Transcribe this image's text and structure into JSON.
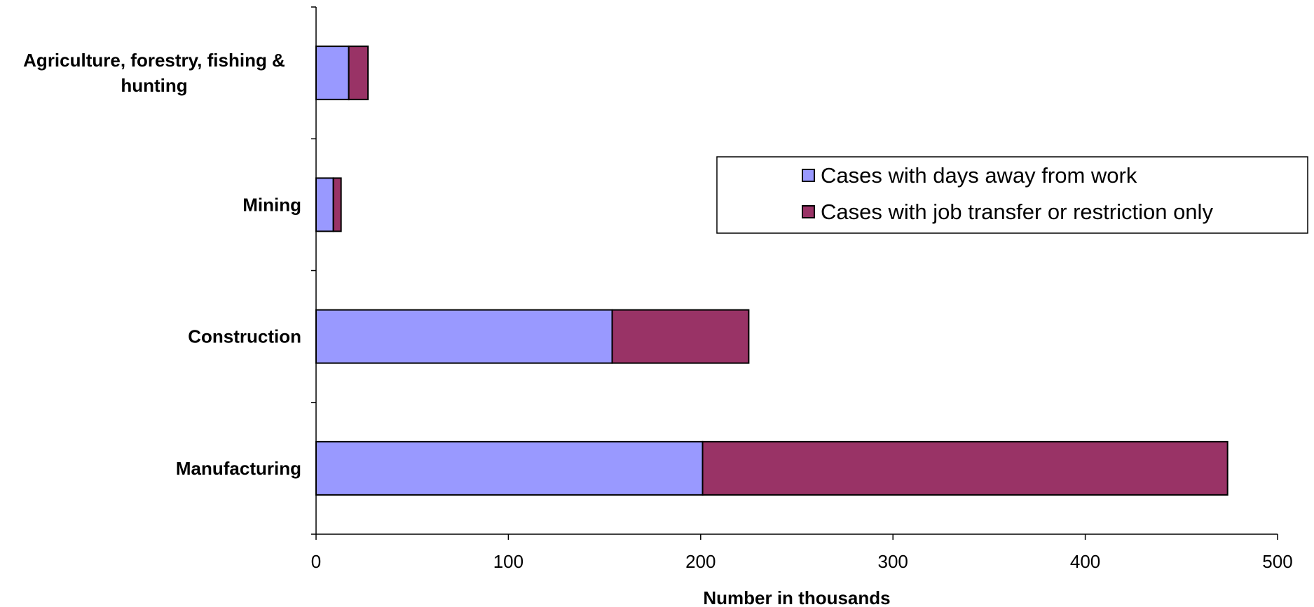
{
  "chart_data": {
    "type": "bar",
    "orientation": "horizontal",
    "stacked": true,
    "categories": [
      [
        "Agriculture, forestry, fishing &",
        "hunting"
      ],
      [
        "Mining"
      ],
      [
        "Construction"
      ],
      [
        "Manufacturing"
      ]
    ],
    "series": [
      {
        "name": "Cases with days away from work",
        "color": "#9999FF",
        "values": [
          17,
          9,
          154,
          201
        ]
      },
      {
        "name": "Cases with job transfer or restriction only",
        "color": "#993366",
        "values": [
          10,
          4,
          71,
          273
        ]
      }
    ],
    "xlabel": "Number in thousands",
    "xlim": [
      0,
      500
    ],
    "xticks": [
      0,
      100,
      200,
      300,
      400,
      500
    ],
    "grid": false,
    "legend_position": "right"
  }
}
